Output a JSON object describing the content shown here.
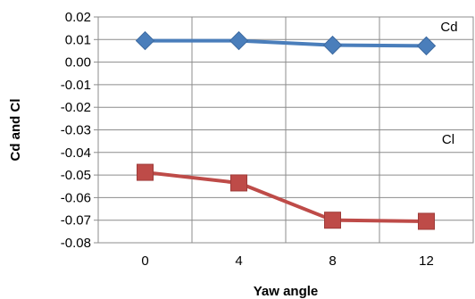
{
  "chart_data": {
    "type": "line",
    "x": [
      0,
      4,
      8,
      12
    ],
    "xlabel": "Yaw angle",
    "ylabel": "Cd and Cl",
    "ylim": [
      -0.08,
      0.02
    ],
    "ytick_step": 0.01,
    "grid": true,
    "legend": "none",
    "series": [
      {
        "name": "Cd",
        "values": [
          0.0095,
          0.0095,
          0.0075,
          0.0072
        ],
        "color": "#4a7ebb",
        "marker": "diamond"
      },
      {
        "name": "Cl",
        "values": [
          -0.0488,
          -0.0535,
          -0.07,
          -0.0705
        ],
        "color": "#be4b48",
        "marker": "square"
      }
    ]
  }
}
